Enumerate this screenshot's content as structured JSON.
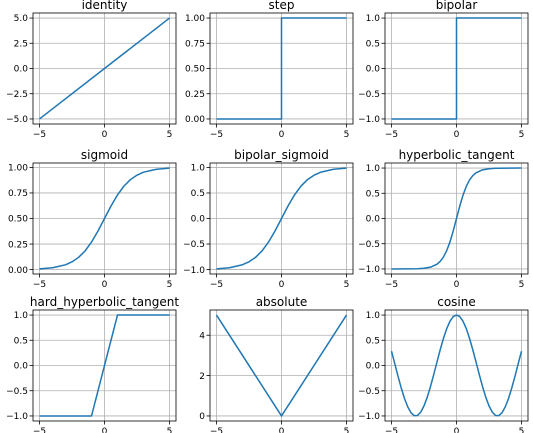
{
  "line_color": "#1f77b4",
  "chart_data": [
    {
      "type": "line",
      "title": "identity",
      "xlabel": "",
      "ylabel": "",
      "grid": true,
      "xlim": [
        -5.5,
        5.5
      ],
      "ylim": [
        -5.5,
        5.5
      ],
      "xticks": [
        -5,
        0,
        5
      ],
      "xtick_labels": [
        "−5",
        "0",
        "5"
      ],
      "yticks": [
        -5,
        -2.5,
        0,
        2.5,
        5
      ],
      "ytick_labels": [
        "−5.0",
        "−2.5",
        "0.0",
        "2.5",
        "5.0"
      ],
      "x": [
        -5,
        5
      ],
      "y": [
        -5,
        5
      ]
    },
    {
      "type": "line",
      "title": "step",
      "xlabel": "",
      "ylabel": "",
      "grid": true,
      "xlim": [
        -5.5,
        5.5
      ],
      "ylim": [
        -0.05,
        1.05
      ],
      "xticks": [
        -5,
        0,
        5
      ],
      "xtick_labels": [
        "−5",
        "0",
        "5"
      ],
      "yticks": [
        0,
        0.25,
        0.5,
        0.75,
        1
      ],
      "ytick_labels": [
        "0.00",
        "0.25",
        "0.50",
        "0.75",
        "1.00"
      ],
      "x": [
        -5,
        0,
        0,
        5
      ],
      "y": [
        0,
        0,
        1,
        1
      ]
    },
    {
      "type": "line",
      "title": "bipolar",
      "xlabel": "",
      "ylabel": "",
      "grid": true,
      "xlim": [
        -5.5,
        5.5
      ],
      "ylim": [
        -1.1,
        1.1
      ],
      "xticks": [
        -5,
        0,
        5
      ],
      "xtick_labels": [
        "−5",
        "0",
        "5"
      ],
      "yticks": [
        -1,
        -0.5,
        0,
        0.5,
        1
      ],
      "ytick_labels": [
        "−1.0",
        "−0.5",
        "0.0",
        "0.5",
        "1.0"
      ],
      "x": [
        -5,
        0,
        0,
        5
      ],
      "y": [
        -1,
        -1,
        1,
        1
      ]
    },
    {
      "type": "line",
      "title": "sigmoid",
      "xlabel": "",
      "ylabel": "",
      "grid": true,
      "xlim": [
        -5.5,
        5.5
      ],
      "ylim": [
        -0.043,
        1.043
      ],
      "xticks": [
        -5,
        0,
        5
      ],
      "xtick_labels": [
        "−5",
        "0",
        "5"
      ],
      "yticks": [
        0,
        0.25,
        0.5,
        0.75,
        1
      ],
      "ytick_labels": [
        "0.00",
        "0.25",
        "0.50",
        "0.75",
        "1.00"
      ],
      "x": [
        -5,
        -4,
        -3,
        -2.5,
        -2,
        -1.5,
        -1,
        -0.5,
        0,
        0.5,
        1,
        1.5,
        2,
        2.5,
        3,
        4,
        5
      ],
      "y": [
        0.007,
        0.018,
        0.047,
        0.076,
        0.119,
        0.182,
        0.269,
        0.378,
        0.5,
        0.622,
        0.731,
        0.818,
        0.881,
        0.924,
        0.953,
        0.982,
        0.993
      ]
    },
    {
      "type": "line",
      "title": "bipolar_sigmoid",
      "xlabel": "",
      "ylabel": "",
      "grid": true,
      "xlim": [
        -5.5,
        5.5
      ],
      "ylim": [
        -1.087,
        1.087
      ],
      "xticks": [
        -5,
        0,
        5
      ],
      "xtick_labels": [
        "−5",
        "0",
        "5"
      ],
      "yticks": [
        -1,
        -0.5,
        0,
        0.5,
        1
      ],
      "ytick_labels": [
        "−1.0",
        "−0.5",
        "0.0",
        "0.5",
        "1.0"
      ],
      "x": [
        -5,
        -4,
        -3,
        -2.5,
        -2,
        -1.5,
        -1,
        -0.5,
        0,
        0.5,
        1,
        1.5,
        2,
        2.5,
        3,
        4,
        5
      ],
      "y": [
        -0.987,
        -0.964,
        -0.905,
        -0.848,
        -0.762,
        -0.635,
        -0.462,
        -0.245,
        0,
        0.245,
        0.462,
        0.635,
        0.762,
        0.848,
        0.905,
        0.964,
        0.987
      ]
    },
    {
      "type": "line",
      "title": "hyperbolic_tangent",
      "xlabel": "",
      "ylabel": "",
      "grid": true,
      "xlim": [
        -5.5,
        5.5
      ],
      "ylim": [
        -1.1,
        1.1
      ],
      "xticks": [
        -5,
        0,
        5
      ],
      "xtick_labels": [
        "−5",
        "0",
        "5"
      ],
      "yticks": [
        -1,
        -0.5,
        0,
        0.5,
        1
      ],
      "ytick_labels": [
        "−1.0",
        "−0.5",
        "0.0",
        "0.5",
        "1.0"
      ],
      "x": [
        -5,
        -3,
        -2.5,
        -2,
        -1.5,
        -1.25,
        -1,
        -0.75,
        -0.5,
        -0.25,
        0,
        0.25,
        0.5,
        0.75,
        1,
        1.25,
        1.5,
        2,
        2.5,
        3,
        5
      ],
      "y": [
        -1,
        -0.995,
        -0.987,
        -0.964,
        -0.905,
        -0.848,
        -0.762,
        -0.635,
        -0.462,
        -0.245,
        0,
        0.245,
        0.462,
        0.635,
        0.762,
        0.848,
        0.905,
        0.964,
        0.987,
        0.995,
        1
      ]
    },
    {
      "type": "line",
      "title": "hard_hyperbolic_tangent",
      "xlabel": "",
      "ylabel": "",
      "grid": true,
      "xlim": [
        -5.5,
        5.5
      ],
      "ylim": [
        -1.1,
        1.1
      ],
      "xticks": [
        -5,
        0,
        5
      ],
      "xtick_labels": [
        "−5",
        "0",
        "5"
      ],
      "yticks": [
        -1,
        -0.5,
        0,
        0.5,
        1
      ],
      "ytick_labels": [
        "−1.0",
        "−0.5",
        "0.0",
        "0.5",
        "1.0"
      ],
      "x": [
        -5,
        -1,
        1,
        5
      ],
      "y": [
        -1,
        -1,
        1,
        1
      ]
    },
    {
      "type": "line",
      "title": "absolute",
      "xlabel": "",
      "ylabel": "",
      "grid": true,
      "xlim": [
        -5.5,
        5.5
      ],
      "ylim": [
        -0.25,
        5.25
      ],
      "xticks": [
        -5,
        0,
        5
      ],
      "xtick_labels": [
        "−5",
        "0",
        "5"
      ],
      "yticks": [
        0,
        2,
        4
      ],
      "ytick_labels": [
        "0",
        "2",
        "4"
      ],
      "x": [
        -5,
        0,
        5
      ],
      "y": [
        5,
        0,
        5
      ]
    },
    {
      "type": "line",
      "title": "cosine",
      "xlabel": "",
      "ylabel": "",
      "grid": true,
      "xlim": [
        -5.5,
        5.5
      ],
      "ylim": [
        -1.1,
        1.1
      ],
      "xticks": [
        -5,
        0,
        5
      ],
      "xtick_labels": [
        "−5",
        "0",
        "5"
      ],
      "yticks": [
        -1,
        -0.5,
        0,
        0.5,
        1
      ],
      "ytick_labels": [
        "−1.0",
        "−0.5",
        "0.0",
        "0.5",
        "1.0"
      ],
      "x": [
        -5,
        -4.75,
        -4.5,
        -4.25,
        -4,
        -3.75,
        -3.5,
        -3.25,
        -3,
        -2.75,
        -2.5,
        -2.25,
        -2,
        -1.75,
        -1.5,
        -1.25,
        -1,
        -0.75,
        -0.5,
        -0.25,
        0,
        0.25,
        0.5,
        0.75,
        1,
        1.25,
        1.5,
        1.75,
        2,
        2.25,
        2.5,
        2.75,
        3,
        3.25,
        3.5,
        3.75,
        4,
        4.25,
        4.5,
        4.75,
        5
      ],
      "y": [
        0.284,
        0.038,
        -0.211,
        -0.447,
        -0.654,
        -0.82,
        -0.936,
        -0.994,
        -0.99,
        -0.924,
        -0.801,
        -0.628,
        -0.416,
        -0.178,
        0.071,
        0.315,
        0.54,
        0.732,
        0.878,
        0.969,
        1,
        0.969,
        0.878,
        0.732,
        0.54,
        0.315,
        0.071,
        -0.178,
        -0.416,
        -0.628,
        -0.801,
        -0.924,
        -0.99,
        -0.994,
        -0.936,
        -0.82,
        -0.654,
        -0.447,
        -0.211,
        0.038,
        0.284
      ]
    }
  ]
}
